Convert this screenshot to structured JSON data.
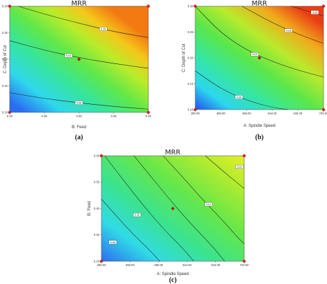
{
  "chart_data": [
    {
      "type": "heatmap",
      "panel_label": "(a)",
      "title": "MRR",
      "xlabel": "B: Feed",
      "ylabel": "C: Depth of Cut",
      "x_ticks": [
        "0.20",
        "0.25",
        "0.30",
        "0.35",
        "0.40"
      ],
      "y_ticks": [
        "0.10",
        "0.15",
        "0.20",
        "0.25",
        "0.30"
      ],
      "xlim": [
        0.2,
        0.4
      ],
      "ylim": [
        0.1,
        0.3
      ],
      "center_point": [
        0.3,
        0.2
      ],
      "contours": [
        {
          "label": "0.06",
          "points": [
            [
              0.2,
              0.137
            ],
            [
              0.25,
              0.126
            ],
            [
              0.3,
              0.118
            ],
            [
              0.35,
              0.111
            ],
            [
              0.4,
              0.106
            ]
          ],
          "label_at": [
            0.3,
            0.118
          ]
        },
        {
          "label": "0.10",
          "points": [
            [
              0.2,
              0.235
            ],
            [
              0.25,
              0.217
            ],
            [
              0.3,
              0.203
            ],
            [
              0.35,
              0.192
            ],
            [
              0.4,
              0.183
            ]
          ],
          "label_at": [
            0.285,
            0.207
          ]
        },
        {
          "label": "0.15",
          "points": [
            [
              0.2,
              0.305
            ],
            [
              0.25,
              0.285
            ],
            [
              0.3,
              0.268
            ],
            [
              0.35,
              0.252
            ],
            [
              0.4,
              0.241
            ]
          ],
          "label_at": [
            0.335,
            0.257
          ]
        }
      ]
    },
    {
      "type": "heatmap",
      "panel_label": "(b)",
      "title": "MRR",
      "xlabel": "A: Spindle Speed",
      "ylabel": "C: Depth of Cut",
      "x_ticks": [
        "280.00",
        "368.00",
        "456.00",
        "544.00",
        "632.00",
        "720.00"
      ],
      "y_ticks": [
        "0.10",
        "0.15",
        "0.20",
        "0.25",
        "0.30"
      ],
      "xlim": [
        280,
        720
      ],
      "ylim": [
        0.1,
        0.3
      ],
      "center_point": [
        500,
        0.2
      ],
      "contours": [
        {
          "label": "0.05",
          "points": [
            [
              280,
              0.175
            ],
            [
              368,
              0.14
            ],
            [
              456,
              0.118
            ],
            [
              544,
              0.104
            ],
            [
              600,
              0.1
            ]
          ],
          "label_at": [
            430,
            0.124
          ]
        },
        {
          "label": "0.10",
          "points": [
            [
              280,
              0.3
            ],
            [
              368,
              0.248
            ],
            [
              456,
              0.215
            ],
            [
              544,
              0.193
            ],
            [
              632,
              0.176
            ],
            [
              720,
              0.163
            ]
          ],
          "label_at": [
            484,
            0.207
          ]
        },
        {
          "label": "0.15",
          "points": [
            [
              440,
              0.3
            ],
            [
              544,
              0.268
            ],
            [
              632,
              0.246
            ],
            [
              720,
              0.228
            ]
          ],
          "label_at": [
            600,
            0.253
          ]
        },
        {
          "label": "0.20",
          "points": [
            [
              610,
              0.3
            ],
            [
              720,
              0.281
            ]
          ],
          "label_at": [
            690,
            0.288
          ]
        }
      ]
    },
    {
      "type": "heatmap",
      "panel_label": "(c)",
      "title": "MRR",
      "xlabel": "A: Spindle Speed",
      "ylabel": "B: Feed",
      "x_ticks": [
        "280.00",
        "368.00",
        "456.00",
        "544.00",
        "632.00",
        "720.00"
      ],
      "y_ticks": [
        "0.20",
        "0.25",
        "0.30",
        "0.35",
        "0.40"
      ],
      "xlim": [
        280,
        720
      ],
      "ylim": [
        0.2,
        0.4
      ],
      "center_point": [
        500,
        0.3
      ],
      "contours": [
        {
          "label": "0.08",
          "points": [
            [
              280,
              0.318
            ],
            [
              330,
              0.283
            ],
            [
              380,
              0.25
            ],
            [
              430,
              0.22
            ],
            [
              460,
              0.2
            ]
          ],
          "label_at": [
            315,
            0.236
          ]
        },
        {
          "label": "0.10",
          "points": [
            [
              290,
              0.4
            ],
            [
              350,
              0.352
            ],
            [
              410,
              0.305
            ],
            [
              470,
              0.262
            ],
            [
              530,
              0.225
            ],
            [
              565,
              0.2
            ]
          ],
          "label_at": [
            390,
            0.288
          ]
        },
        {
          "label": "",
          "points": [
            [
              380,
              0.4
            ],
            [
              440,
              0.355
            ],
            [
              500,
              0.31
            ],
            [
              560,
              0.268
            ],
            [
              620,
              0.23
            ],
            [
              660,
              0.2
            ]
          ],
          "label_at": null
        },
        {
          "label": "0.12",
          "points": [
            [
              470,
              0.4
            ],
            [
              530,
              0.36
            ],
            [
              590,
              0.318
            ],
            [
              650,
              0.28
            ],
            [
              700,
              0.245
            ],
            [
              720,
              0.233
            ]
          ],
          "label_at": [
            610,
            0.308
          ]
        },
        {
          "label": "0.14",
          "points": [
            [
              600,
              0.4
            ],
            [
              660,
              0.368
            ],
            [
              720,
              0.338
            ]
          ],
          "label_at": [
            705,
            0.379
          ]
        }
      ]
    }
  ]
}
